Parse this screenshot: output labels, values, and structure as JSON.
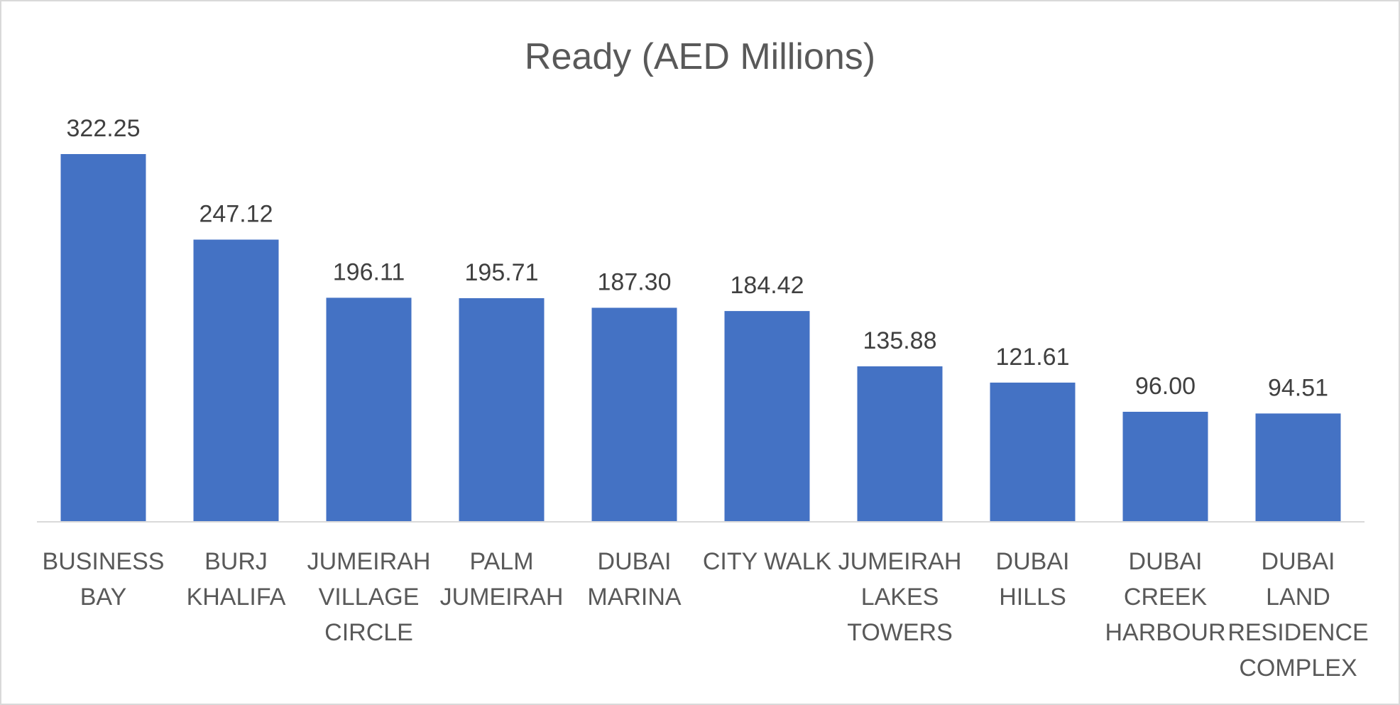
{
  "chart_data": {
    "type": "bar",
    "title": "Ready (AED Millions)",
    "xlabel": "",
    "ylabel": "",
    "grid": false,
    "legend": "none",
    "bar_color": "#4472C4",
    "axis_color": "#d9d9d9",
    "ylim": [
      0,
      322.25
    ],
    "categories": [
      [
        "BUSINESS",
        "BAY"
      ],
      [
        "BURJ",
        "KHALIFA"
      ],
      [
        "JUMEIRAH",
        "VILLAGE",
        "CIRCLE"
      ],
      [
        "PALM",
        "JUMEIRAH"
      ],
      [
        "DUBAI",
        "MARINA"
      ],
      [
        "CITY WALK"
      ],
      [
        "JUMEIRAH",
        "LAKES",
        "TOWERS"
      ],
      [
        "DUBAI",
        "HILLS"
      ],
      [
        "DUBAI",
        "CREEK",
        "HARBOUR"
      ],
      [
        "DUBAI",
        "LAND",
        "RESIDENCE",
        "COMPLEX"
      ]
    ],
    "values": [
      322.25,
      247.12,
      196.11,
      195.71,
      187.3,
      184.42,
      135.88,
      121.61,
      96.0,
      94.51
    ],
    "data_labels": [
      "322.25",
      "247.12",
      "196.11",
      "195.71",
      "187.30",
      "184.42",
      "135.88",
      "121.61",
      "96.00",
      "94.51"
    ]
  }
}
